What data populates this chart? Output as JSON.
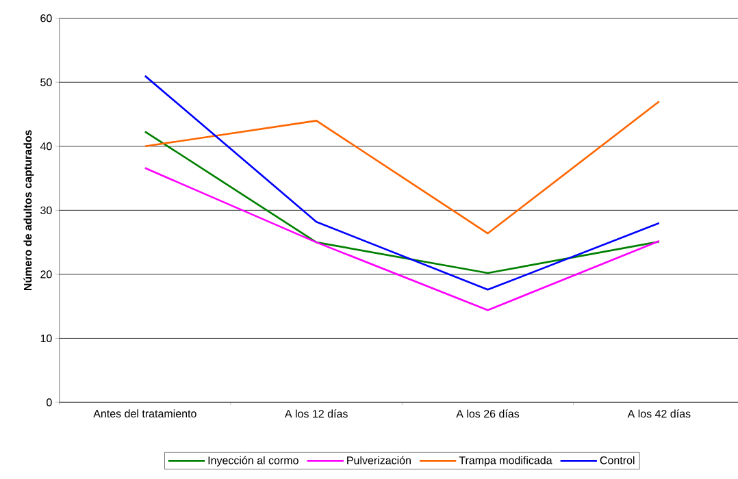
{
  "chart_data": {
    "type": "line",
    "ylabel": "Número de adultos capturados",
    "categories": [
      "Antes del tratamiento",
      "A los 12 días",
      "A los 26 días",
      "A los 42 días"
    ],
    "series": [
      {
        "name": "Inyección al cormo",
        "color": "#008000",
        "values": [
          42.3,
          25,
          20.2,
          25.1
        ]
      },
      {
        "name": "Pulverización",
        "color": "#ff00ff",
        "values": [
          36.6,
          25,
          14.4,
          25.2
        ]
      },
      {
        "name": "Trampa modificada",
        "color": "#ff6600",
        "values": [
          40,
          44,
          26.4,
          47
        ]
      },
      {
        "name": "Control",
        "color": "#0000ff",
        "values": [
          51,
          28.2,
          17.6,
          28
        ]
      }
    ],
    "ylim": [
      0,
      60
    ],
    "yticks": [
      0,
      10,
      20,
      30,
      40,
      50,
      60
    ],
    "grid": "y",
    "legend": "bottom",
    "marker": "none",
    "line_style": "solid"
  }
}
